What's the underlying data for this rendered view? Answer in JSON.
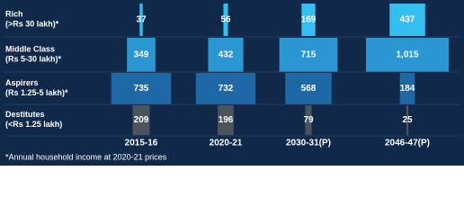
{
  "chart_data": {
    "type": "bar",
    "categories": [
      "2015-16",
      "2020-21",
      "2030-31(P)",
      "2046-47(P)"
    ],
    "series": [
      {
        "name": "Rich",
        "range": "(>Rs 30 lakh)*",
        "color": "#35bff0",
        "values": [
          37,
          56,
          169,
          437
        ]
      },
      {
        "name": "Middle Class",
        "range": "(Rs 5-30 lakh)*",
        "color": "#2a96d2",
        "values": [
          349,
          432,
          715,
          1015
        ],
        "value_labels": [
          "349",
          "432",
          "715",
          "1,015"
        ]
      },
      {
        "name": "Aspirers",
        "range": "(Rs 1.25-5 lakh)*",
        "color": "#1f68a8",
        "values": [
          735,
          732,
          568,
          184
        ]
      },
      {
        "name": "Destitutes",
        "range": "(<Rs 1.25 lakh)",
        "color": "#4b535c",
        "values": [
          209,
          196,
          79,
          25
        ]
      }
    ],
    "footnote": "*Annual household income at 2020-21 prices"
  }
}
